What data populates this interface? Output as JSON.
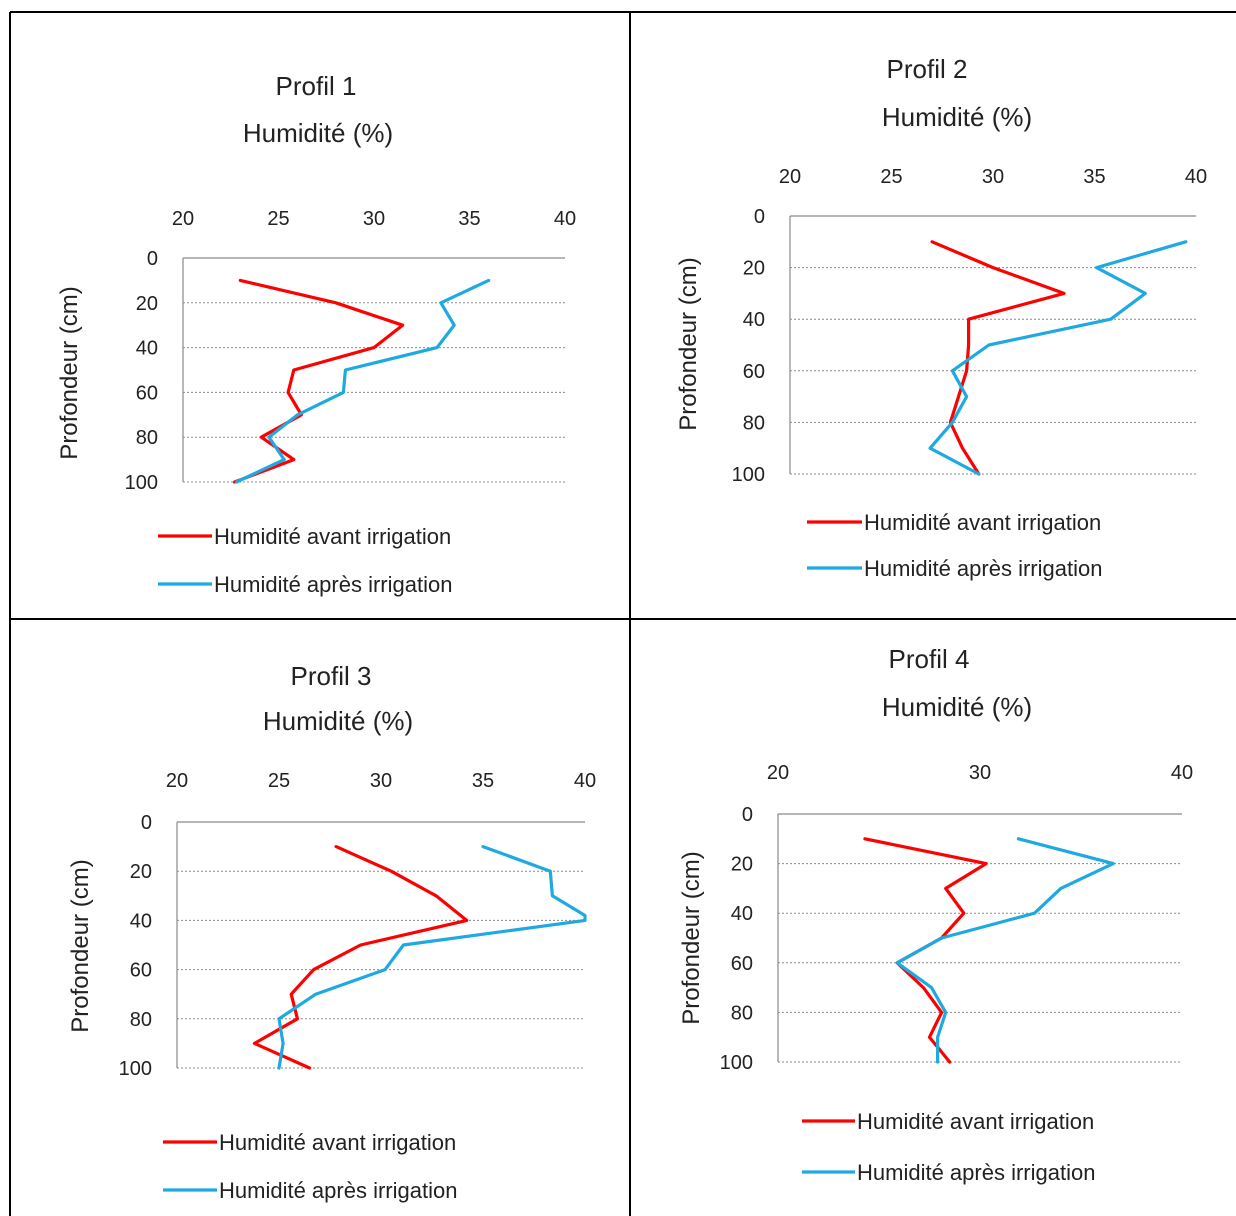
{
  "chart_data": [
    {
      "type": "line",
      "title": "Profil 1",
      "xlabel": "Humidité (%)",
      "ylabel": "Profondeur (cm)",
      "x_axis_position": "top",
      "y_inverted": true,
      "xlim": [
        20,
        40
      ],
      "xticks": [
        "20",
        "25",
        "30",
        "35",
        "40"
      ],
      "ylim": [
        0,
        100
      ],
      "yticks": [
        "0",
        "20",
        "40",
        "60",
        "80",
        "100"
      ],
      "grid": "horizontal dotted",
      "legend_position": "bottom",
      "series": [
        {
          "name": "Humidité avant irrigation",
          "color": "#ff0000",
          "points": [
            {
              "x": 23,
              "y": 10
            },
            {
              "x": 28,
              "y": 20
            },
            {
              "x": 31.5,
              "y": 30
            },
            {
              "x": 30,
              "y": 40
            },
            {
              "x": 25.8,
              "y": 50
            },
            {
              "x": 25.5,
              "y": 60
            },
            {
              "x": 26.2,
              "y": 70
            },
            {
              "x": 24.1,
              "y": 80
            },
            {
              "x": 25.8,
              "y": 90
            },
            {
              "x": 22.7,
              "y": 100
            }
          ]
        },
        {
          "name": "Humidité après irrigation",
          "color": "#1fa9e1",
          "points": [
            {
              "x": 36,
              "y": 10
            },
            {
              "x": 33.5,
              "y": 20
            },
            {
              "x": 34.2,
              "y": 30
            },
            {
              "x": 33.3,
              "y": 40
            },
            {
              "x": 28.5,
              "y": 50
            },
            {
              "x": 28.4,
              "y": 60
            },
            {
              "x": 26,
              "y": 70
            },
            {
              "x": 24.5,
              "y": 80
            },
            {
              "x": 25.3,
              "y": 90
            },
            {
              "x": 22.8,
              "y": 100
            }
          ]
        }
      ]
    },
    {
      "type": "line",
      "title": "Profil 2",
      "xlabel": "Humidité (%)",
      "ylabel": "Profondeur (cm)",
      "x_axis_position": "top",
      "y_inverted": true,
      "xlim": [
        20,
        40
      ],
      "xticks": [
        "20",
        "25",
        "30",
        "35",
        "40"
      ],
      "ylim": [
        0,
        100
      ],
      "yticks": [
        "0",
        "20",
        "40",
        "60",
        "80",
        "100"
      ],
      "grid": "horizontal dotted",
      "legend_position": "bottom",
      "series": [
        {
          "name": "Humidité avant irrigation",
          "color": "#ff0000",
          "points": [
            {
              "x": 27,
              "y": 10
            },
            {
              "x": 30,
              "y": 20
            },
            {
              "x": 33.5,
              "y": 30
            },
            {
              "x": 28.8,
              "y": 40
            },
            {
              "x": 28.8,
              "y": 50
            },
            {
              "x": 28.7,
              "y": 60
            },
            {
              "x": 28.3,
              "y": 70
            },
            {
              "x": 27.9,
              "y": 80
            },
            {
              "x": 28.5,
              "y": 90
            },
            {
              "x": 29.3,
              "y": 100
            }
          ]
        },
        {
          "name": "Humidité après irrigation",
          "color": "#1fa9e1",
          "points": [
            {
              "x": 39.5,
              "y": 10
            },
            {
              "x": 35.1,
              "y": 20
            },
            {
              "x": 37.5,
              "y": 30
            },
            {
              "x": 35.8,
              "y": 40
            },
            {
              "x": 29.8,
              "y": 50
            },
            {
              "x": 28,
              "y": 60
            },
            {
              "x": 28.7,
              "y": 70
            },
            {
              "x": 28,
              "y": 80
            },
            {
              "x": 26.9,
              "y": 90
            },
            {
              "x": 29.3,
              "y": 100
            }
          ]
        }
      ]
    },
    {
      "type": "line",
      "title": "Profil 3",
      "xlabel": "Humidité (%)",
      "ylabel": "Profondeur (cm)",
      "x_axis_position": "top",
      "y_inverted": true,
      "xlim": [
        20,
        40
      ],
      "xticks": [
        "20",
        "25",
        "30",
        "35",
        "40"
      ],
      "ylim": [
        0,
        100
      ],
      "yticks": [
        "0",
        "20",
        "40",
        "60",
        "80",
        "100"
      ],
      "grid": "horizontal dotted",
      "legend_position": "bottom",
      "series": [
        {
          "name": "Humidité avant irrigation",
          "color": "#ff0000",
          "points": [
            {
              "x": 27.8,
              "y": 10
            },
            {
              "x": 30.5,
              "y": 20
            },
            {
              "x": 32.7,
              "y": 30
            },
            {
              "x": 34.2,
              "y": 40
            },
            {
              "x": 29,
              "y": 50
            },
            {
              "x": 26.7,
              "y": 60
            },
            {
              "x": 25.6,
              "y": 70
            },
            {
              "x": 25.9,
              "y": 80
            },
            {
              "x": 23.8,
              "y": 90
            },
            {
              "x": 26.5,
              "y": 100
            }
          ]
        },
        {
          "name": "Humidité après irrigation",
          "color": "#1fa9e1",
          "points": [
            {
              "x": 35,
              "y": 10
            },
            {
              "x": 38.3,
              "y": 20
            },
            {
              "x": 38.4,
              "y": 30
            },
            {
              "x": 40,
              "y": 38
            },
            {
              "x": 40,
              "y": 40
            },
            {
              "x": 31.1,
              "y": 50
            },
            {
              "x": 30.2,
              "y": 60
            },
            {
              "x": 26.8,
              "y": 70
            },
            {
              "x": 25,
              "y": 80
            },
            {
              "x": 25.2,
              "y": 90
            },
            {
              "x": 25,
              "y": 100
            }
          ]
        }
      ]
    },
    {
      "type": "line",
      "title": "Profil 4",
      "xlabel": "Humidité (%)",
      "ylabel": "Profondeur (cm)",
      "x_axis_position": "top",
      "y_inverted": true,
      "xlim": [
        20,
        40
      ],
      "xticks": [
        "20",
        "30",
        "40"
      ],
      "ylim": [
        0,
        100
      ],
      "yticks": [
        "0",
        "20",
        "40",
        "60",
        "80",
        "100"
      ],
      "grid": "horizontal dotted",
      "legend_position": "bottom",
      "series": [
        {
          "name": "Humidité avant irrigation",
          "color": "#ff0000",
          "points": [
            {
              "x": 24.3,
              "y": 10
            },
            {
              "x": 30.3,
              "y": 20
            },
            {
              "x": 28.3,
              "y": 30
            },
            {
              "x": 29.2,
              "y": 40
            },
            {
              "x": 28.1,
              "y": 50
            },
            {
              "x": 25.9,
              "y": 60
            },
            {
              "x": 27.2,
              "y": 70
            },
            {
              "x": 28.1,
              "y": 80
            },
            {
              "x": 27.5,
              "y": 90
            },
            {
              "x": 28.5,
              "y": 100
            }
          ]
        },
        {
          "name": "Humidité après irrigation",
          "color": "#1fa9e1",
          "points": [
            {
              "x": 31.9,
              "y": 10
            },
            {
              "x": 36.6,
              "y": 20
            },
            {
              "x": 34,
              "y": 30
            },
            {
              "x": 32.7,
              "y": 40
            },
            {
              "x": 28.1,
              "y": 50
            },
            {
              "x": 25.9,
              "y": 60
            },
            {
              "x": 27.6,
              "y": 70
            },
            {
              "x": 28.3,
              "y": 80
            },
            {
              "x": 27.9,
              "y": 90
            },
            {
              "x": 27.9,
              "y": 100
            }
          ]
        }
      ]
    }
  ]
}
